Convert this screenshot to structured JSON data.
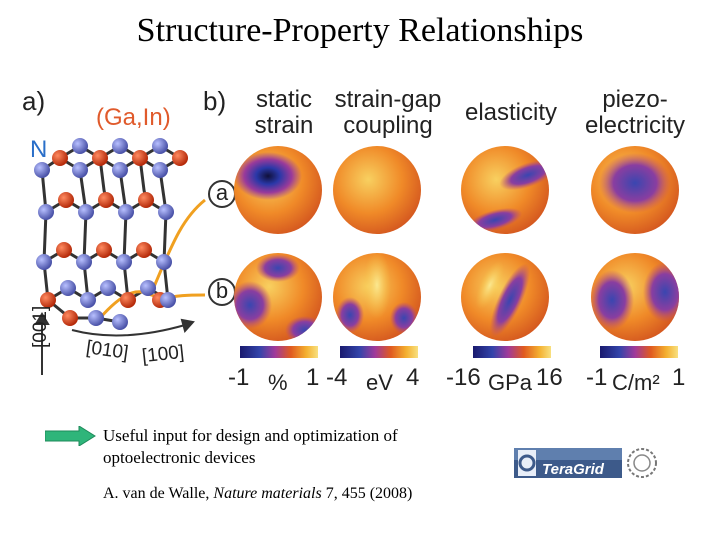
{
  "title": "Structure-Property Relationships",
  "panel_a": {
    "label": "a)",
    "ga_in_label": "(Ga,In)",
    "n_label": "N",
    "axis_001": "[001]",
    "axis_010": "[010]",
    "axis_100": "[100]",
    "colors": {
      "ga_in_atom": "#cc3311",
      "n_atom": "#6f79c9",
      "ga_in_text": "#e05a2b",
      "n_text": "#2a6fc9"
    }
  },
  "panel_b": {
    "label": "b)",
    "columns": [
      {
        "line1": "static",
        "line2": "strain"
      },
      {
        "line1": "strain-gap",
        "line2": "coupling"
      },
      {
        "line1": "elasticity",
        "line2": ""
      },
      {
        "line1": "piezo-",
        "line2": "electricity"
      }
    ],
    "row_labels": [
      "a",
      "b"
    ],
    "colorbars": [
      {
        "min": "-1",
        "unit": "%",
        "max": "1"
      },
      {
        "min": "-4",
        "unit": "eV",
        "max": "4"
      },
      {
        "min": "-16",
        "unit": "GPa",
        "max": "16"
      },
      {
        "min": "-1",
        "unit": "C/m²",
        "max": "1"
      }
    ],
    "palette": [
      "#1a1a6e",
      "#3344aa",
      "#a03a9a",
      "#e05a20",
      "#f4b030",
      "#f8e080"
    ]
  },
  "useful_text": "Useful input for design and optimization of optoelectronic devices",
  "citation": {
    "author": "A. van de Walle, ",
    "journal": "Nature materials",
    "rest": " 7, 455 (2008)"
  },
  "logo": {
    "name": "TeraGrid"
  },
  "arrow_color": "#2fb57a"
}
